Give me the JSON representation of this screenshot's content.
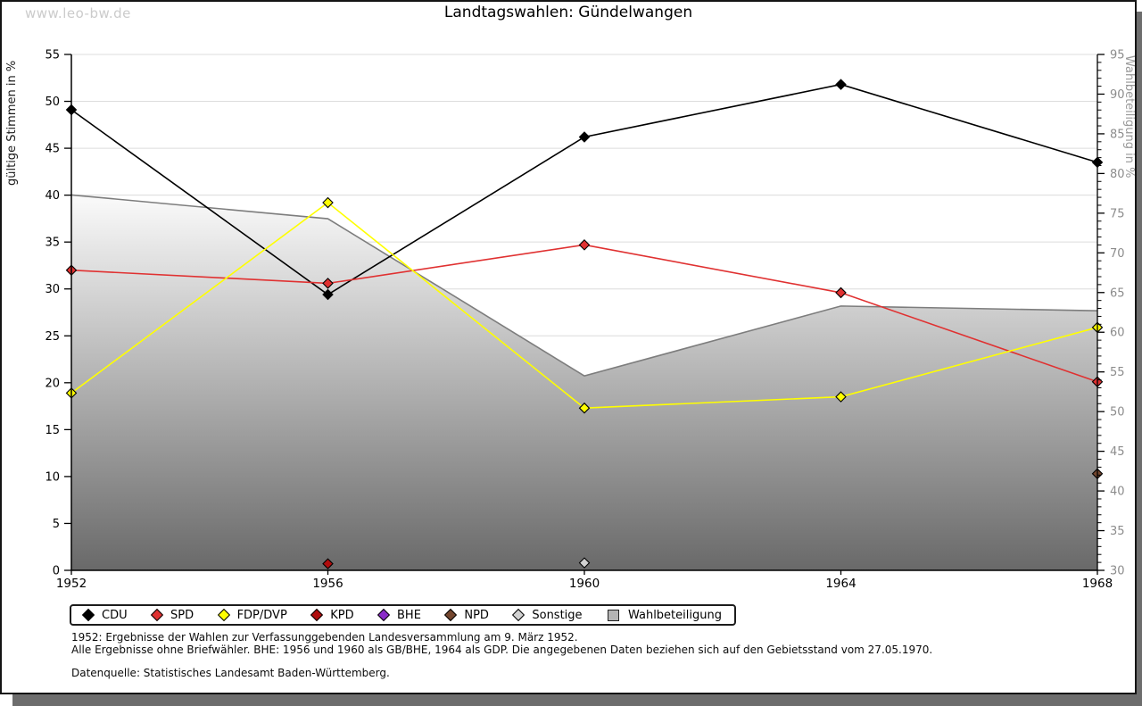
{
  "page": {
    "watermark": "www.leo-bw.de",
    "title": "Landtagswahlen: Gündelwangen"
  },
  "chart_data": {
    "type": "line",
    "title": "Landtagswahlen: Gündelwangen",
    "categories": [
      "1952",
      "1956",
      "1960",
      "1964",
      "1968"
    ],
    "left_axis": {
      "label": "gültige Stimmen in %",
      "min": 0,
      "max": 55,
      "step": 5
    },
    "right_axis": {
      "label": "Wahlbeteiligung in %",
      "min": 30,
      "max": 95,
      "step": 5,
      "minor_step": 1
    },
    "grid": "horizontal",
    "legend_position": "bottom",
    "area_series": {
      "name": "Wahlbeteiligung",
      "axis": "right",
      "values": [
        77.3,
        74.3,
        54.5,
        63.3,
        62.7
      ],
      "fill_top": "#fcfcfc",
      "fill_bottom": "#696969",
      "stroke": "#7d7d7d",
      "legend_swatch": "#b4b4b4"
    },
    "series": [
      {
        "name": "CDU",
        "color": "#000000",
        "values": [
          49.1,
          29.4,
          46.2,
          51.8,
          43.5
        ]
      },
      {
        "name": "SPD",
        "color": "#e03131",
        "values": [
          32.0,
          30.6,
          34.7,
          29.6,
          20.1
        ]
      },
      {
        "name": "FDP/DVP",
        "color": "#ffff00",
        "values": [
          18.9,
          39.2,
          17.3,
          18.5,
          25.9
        ]
      },
      {
        "name": "KPD",
        "color": "#b00d0d",
        "values": [
          null,
          0.7,
          null,
          null,
          null
        ]
      },
      {
        "name": "BHE",
        "color": "#8a2bc9",
        "values": [
          null,
          null,
          null,
          null,
          null
        ]
      },
      {
        "name": "NPD",
        "color": "#74462e",
        "values": [
          null,
          null,
          null,
          null,
          10.3
        ]
      },
      {
        "name": "Sonstige",
        "color": "#d2d2d2",
        "values": [
          null,
          null,
          0.8,
          null,
          null
        ]
      }
    ],
    "colors": {
      "gridline": "#dcdcdc",
      "axis": "#000000",
      "right_axis_text": "#8c8c8c",
      "marker_outline": "#000000"
    }
  },
  "footer": {
    "line1": "1952: Ergebnisse der Wahlen zur Verfassunggebenden Landesversammlung am 9. März 1952.",
    "line2": "Alle Ergebnisse ohne Briefwähler. BHE: 1956 und 1960 als GB/BHE, 1964 als GDP. Die angegebenen Daten beziehen sich auf den Gebietsstand vom 27.05.1970.",
    "source": "Datenquelle: Statistisches Landesamt Baden-Württemberg."
  }
}
